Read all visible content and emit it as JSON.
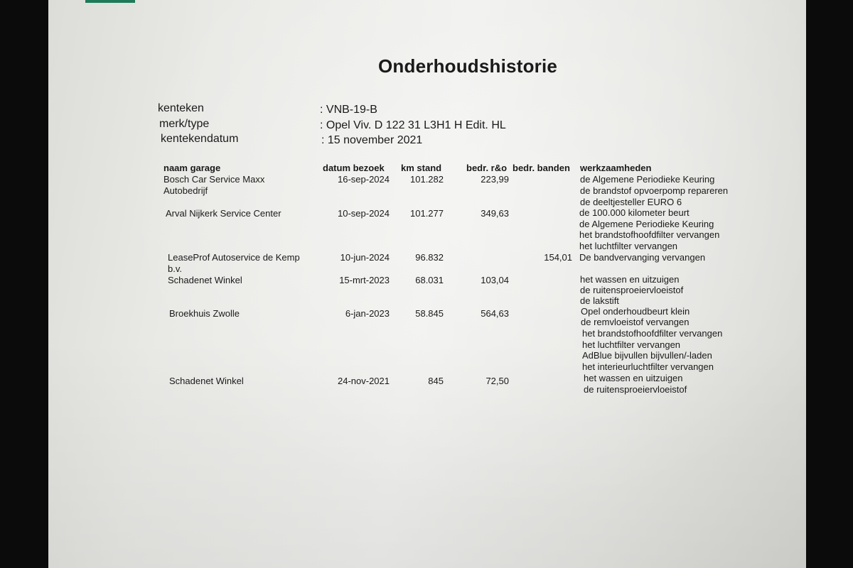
{
  "title": "Onderhoudshistorie",
  "vehicle": {
    "kenteken_label": "kenteken",
    "kenteken_value": ": VNB-19-B",
    "type_label": "merk/type",
    "type_value": ": Opel Viv. D 122 31 L3H1 H Edit. HL",
    "datum_label": "kentekendatum",
    "datum_value": ": 15 november 2021"
  },
  "table": {
    "headers": [
      "naam garage",
      "datum bezoek",
      "km stand",
      "bedr. r&o",
      "bedr. banden",
      "werkzaamheden"
    ],
    "rows": [
      {
        "garage": [
          "Bosch Car Service Maxx",
          "Autobedrijf"
        ],
        "datum": "16-sep-2024",
        "km": "101.282",
        "ro": "223,99",
        "banden": "",
        "work": [
          "de Algemene Periodieke Keuring",
          "de brandstof opvoerpomp repareren",
          "de deeltjesteller EURO 6"
        ]
      },
      {
        "garage": [
          "Arval Nijkerk Service Center"
        ],
        "datum": "10-sep-2024",
        "km": "101.277",
        "ro": "349,63",
        "banden": "",
        "work": [
          "de 100.000 kilometer beurt",
          "de Algemene Periodieke Keuring",
          "het brandstofhoofdfilter vervangen",
          "het luchtfilter vervangen"
        ]
      },
      {
        "garage": [
          "LeaseProf Autoservice de Kemp",
          "b.v."
        ],
        "datum": "10-jun-2024",
        "km": "96.832",
        "ro": "",
        "banden": "154,01",
        "work": [
          "De bandvervanging vervangen"
        ]
      },
      {
        "garage": [
          "Schadenet Winkel"
        ],
        "datum": "15-mrt-2023",
        "km": "68.031",
        "ro": "103,04",
        "banden": "",
        "work": [
          "het wassen en uitzuigen",
          "de ruitensproeiervloeistof",
          "de lakstift"
        ]
      },
      {
        "garage": [
          "Broekhuis Zwolle"
        ],
        "datum": "6-jan-2023",
        "km": "58.845",
        "ro": "564,63",
        "banden": "",
        "work": [
          "Opel onderhoudbeurt klein",
          "de remvloeistof vervangen",
          "het brandstofhoofdfilter vervangen",
          "het luchtfilter vervangen",
          "AdBlue bijvullen bijvullen/-laden",
          "het interieurluchtfilter vervangen"
        ]
      },
      {
        "garage": [
          "Schadenet Winkel"
        ],
        "datum": "24-nov-2021",
        "km": "845",
        "ro": "72,50",
        "banden": "",
        "work": [
          "het wassen en uitzuigen",
          "de ruitensproeiervloeistof"
        ]
      }
    ]
  }
}
